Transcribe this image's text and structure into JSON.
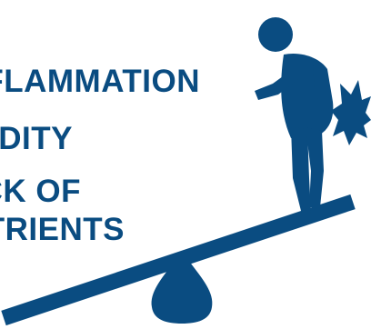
{
  "colors": {
    "primary": "#0a4c81",
    "background": "#ffffff"
  },
  "labels": [
    "INFLAMMATION",
    "ACIDITY",
    "LACK OF",
    "NUTRIENTS"
  ],
  "illustration": {
    "figure": "person-with-back-pain-icon",
    "pain_marks": "pain-burst-icon",
    "seesaw": "seesaw-plank-icon",
    "fulcrum": "fulcrum-icon"
  }
}
